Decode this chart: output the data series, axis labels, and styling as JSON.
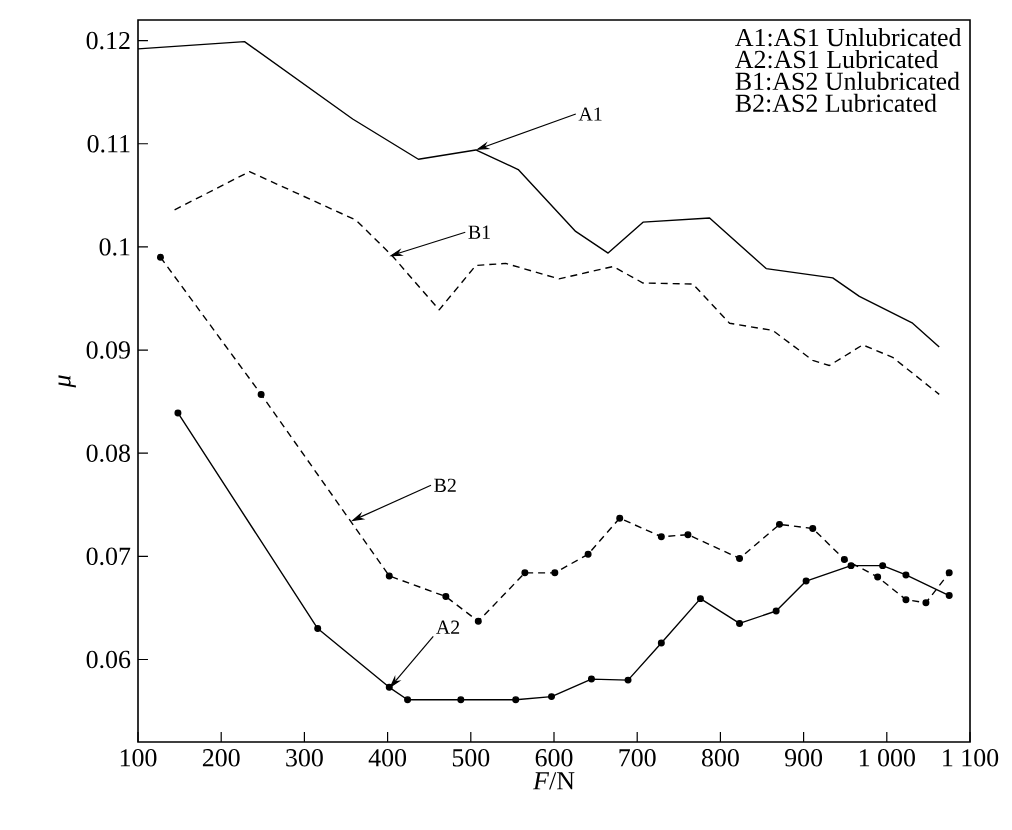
{
  "chart_data": {
    "type": "line",
    "xlabel": "*F*/N",
    "ylabel": "μ",
    "xlim": [
      100,
      1100
    ],
    "ylim": [
      0.052,
      0.122
    ],
    "xticks": [
      100,
      200,
      300,
      400,
      500,
      600,
      700,
      800,
      900,
      {
        "value": 1000,
        "label": "1 000"
      },
      {
        "value": 1100,
        "label": "1 100"
      }
    ],
    "yticks": [
      0.06,
      0.07,
      0.08,
      0.09,
      0.1,
      0.11,
      0.12
    ],
    "series": [
      {
        "color": "#000000",
        "line_style": "solid",
        "marker": "none",
        "x": [
          100,
          228,
          358,
          437,
          506,
          557,
          626,
          665,
          707,
          787,
          855,
          935,
          967,
          1031,
          1063
        ],
        "values": [
          0.1192,
          0.1199,
          0.1124,
          0.1085,
          0.1094,
          0.1075,
          0.1015,
          0.0994,
          0.1024,
          0.1028,
          0.0979,
          0.097,
          0.0952,
          0.0926,
          0.0903
        ]
      },
      {
        "color": "#000000",
        "line_style": "solid",
        "marker": "circle",
        "x": [
          148,
          316,
          402,
          424,
          488,
          554,
          597,
          645,
          689,
          729,
          776,
          823,
          867,
          903,
          957,
          995,
          1023,
          1075
        ],
        "values": [
          0.0839,
          0.063,
          0.0573,
          0.0561,
          0.0561,
          0.0561,
          0.0564,
          0.0581,
          0.058,
          0.0616,
          0.0659,
          0.0635,
          0.0647,
          0.0676,
          0.0691,
          0.0691,
          0.0682,
          0.0662
        ]
      },
      {
        "color": "#000000",
        "line_style": "dashed",
        "marker": "none",
        "x": [
          144,
          234,
          362,
          406,
          462,
          506,
          542,
          606,
          671,
          707,
          767,
          811,
          863,
          911,
          931,
          971,
          1007,
          1063
        ],
        "values": [
          0.1036,
          0.1073,
          0.1026,
          0.0991,
          0.0939,
          0.0982,
          0.0984,
          0.0969,
          0.0981,
          0.0965,
          0.0964,
          0.0926,
          0.0919,
          0.089,
          0.0885,
          0.0905,
          0.0893,
          0.0857
        ]
      },
      {
        "color": "#000000",
        "line_style": "dashed",
        "marker": "circle",
        "x": [
          127,
          248,
          402,
          470,
          509,
          565,
          601,
          641,
          679,
          729,
          761,
          823,
          871,
          911,
          949,
          989,
          1023,
          1047,
          1075
        ],
        "values": [
          0.099,
          0.0857,
          0.0681,
          0.0661,
          0.0637,
          0.0684,
          0.0684,
          0.0702,
          0.0737,
          0.0719,
          0.0721,
          0.0698,
          0.0731,
          0.0727,
          0.0697,
          0.068,
          0.0658,
          0.0655,
          0.0684
        ]
      }
    ],
    "annotations": [
      {
        "text": "A1",
        "x": 506,
        "y": 0.1094
      },
      {
        "text": "B1",
        "x": 402,
        "y": 0.0991
      },
      {
        "text": "B2",
        "x": 356,
        "y": 0.0734
      },
      {
        "text": "A2",
        "x": 402,
        "y": 0.0572
      },
      "A1:AS1 Unlubricated",
      "A2:AS1 Lubricated",
      "B1:AS2 Unlubricated",
      "B2:AS2 Lubricated"
    ]
  }
}
